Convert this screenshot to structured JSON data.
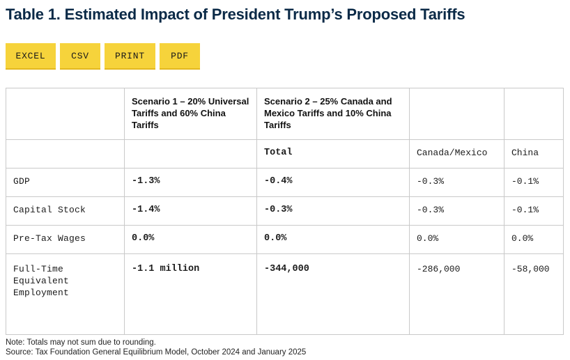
{
  "title": "Table 1. Estimated Impact of President Trump’s Proposed Tariffs",
  "buttons": {
    "excel": "EXCEL",
    "csv": "CSV",
    "print": "PRINT",
    "pdf": "PDF"
  },
  "table": {
    "header": {
      "blank": "",
      "scenario1": "Scenario 1 – 20% Universal Tariffs and 60% China Tariffs",
      "scenario2": "Scenario 2 – 25% Canada and Mexico Tariffs and 10% China Tariffs",
      "blank2": "",
      "blank3": ""
    },
    "subheader": {
      "total": "Total",
      "canada_mexico": "Canada/Mexico",
      "china": "China"
    },
    "rows": [
      {
        "label": "GDP",
        "s1": "-1.3%",
        "total": "-0.4%",
        "cm": "-0.3%",
        "china": "-0.1%"
      },
      {
        "label": "Capital Stock",
        "s1": "-1.4%",
        "total": "-0.3%",
        "cm": "-0.3%",
        "china": "-0.1%"
      },
      {
        "label": "Pre-Tax Wages",
        "s1": "0.0%",
        "total": "0.0%",
        "cm": "0.0%",
        "china": "0.0%"
      },
      {
        "label": "Full-Time Equivalent Employment",
        "s1": "-1.1 million",
        "total": "-344,000",
        "cm": "-286,000",
        "china": "-58,000"
      }
    ]
  },
  "notes": {
    "note": "Note: Totals may not sum due to rounding.",
    "source": "Source: Tax Foundation General Equilibrium Model, October 2024 and January 2025"
  }
}
